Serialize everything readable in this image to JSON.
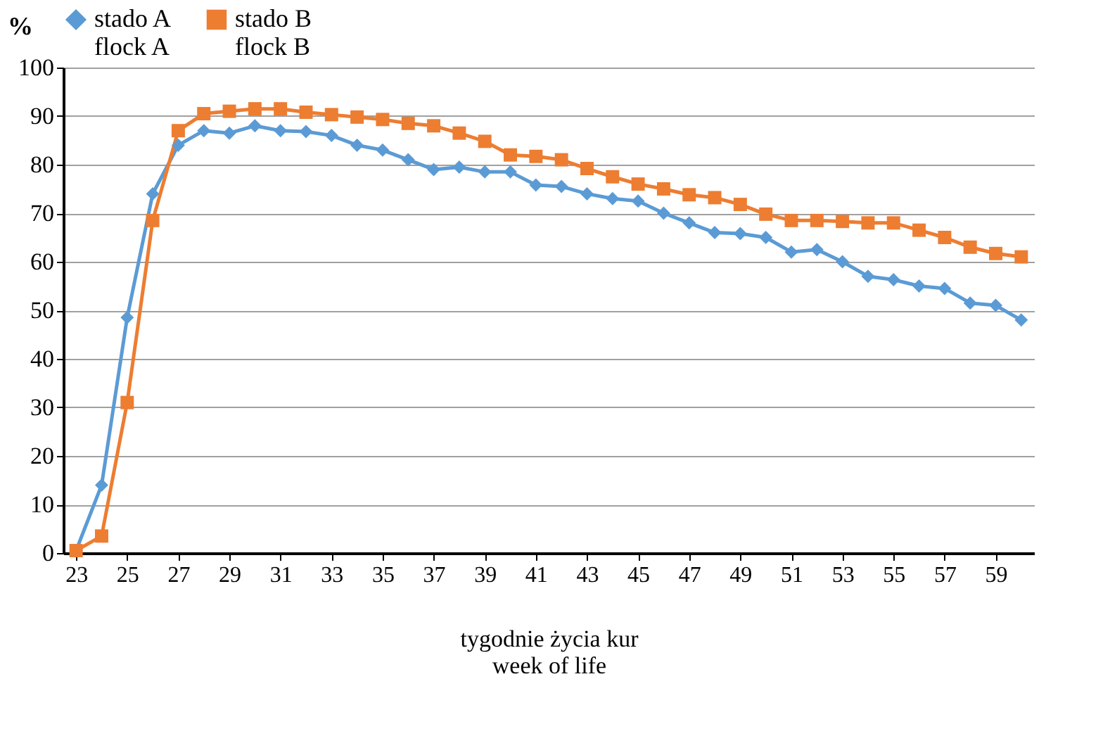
{
  "chart_data": {
    "type": "line",
    "xlabel": "tygodnie  życia kur\nweek of life",
    "ylabel": "%",
    "x": [
      23,
      24,
      25,
      26,
      27,
      28,
      29,
      30,
      31,
      32,
      33,
      34,
      35,
      36,
      37,
      38,
      39,
      40,
      41,
      42,
      43,
      44,
      45,
      46,
      47,
      48,
      49,
      50,
      51,
      52,
      53,
      54,
      55,
      56,
      57,
      58,
      59,
      60
    ],
    "series": [
      {
        "name": "stado A\nflock A",
        "color": "#5b9bd5",
        "marker": "diamond",
        "values": [
          0.5,
          14,
          48.5,
          74,
          84,
          87,
          86.5,
          88,
          87,
          86.8,
          86,
          84,
          83,
          81,
          79,
          79.5,
          78.5,
          78.5,
          75.8,
          75.5,
          74,
          73,
          72.5,
          70,
          68,
          66,
          65.8,
          65,
          62,
          62.5,
          60,
          57,
          56.3,
          55,
          54.5,
          51.5,
          51,
          48
        ]
      },
      {
        "name": "stado B\nflock B",
        "color": "#ed7d31",
        "marker": "square",
        "values": [
          0.5,
          3.5,
          31,
          68.5,
          87,
          90.5,
          91,
          91.5,
          91.5,
          90.8,
          90.3,
          89.8,
          89.3,
          88.5,
          88,
          86.5,
          84.8,
          82,
          81.7,
          81,
          79.2,
          77.5,
          76,
          75,
          73.8,
          73.2,
          71.8,
          69.8,
          68.5,
          68.5,
          68.3,
          68,
          68,
          66.5,
          65,
          63,
          61.7,
          61
        ]
      }
    ],
    "xlim": [
      22.5,
      60.5
    ],
    "xticks": [
      23,
      25,
      27,
      29,
      31,
      33,
      35,
      37,
      39,
      41,
      43,
      45,
      47,
      49,
      51,
      53,
      55,
      57,
      59
    ],
    "ylim": [
      0,
      100
    ],
    "yticks": [
      0,
      10,
      20,
      30,
      40,
      50,
      60,
      70,
      80,
      90,
      100
    ],
    "grid": "y",
    "legend": "top",
    "line_style": "solid"
  }
}
